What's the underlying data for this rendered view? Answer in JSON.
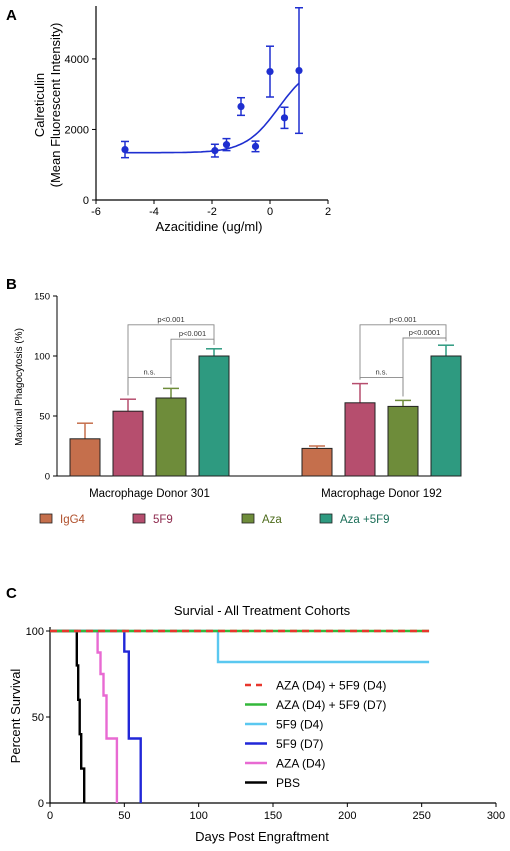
{
  "panels": {
    "a": "A",
    "b": "B",
    "c": "C"
  },
  "chart_data": [
    {
      "type": "scatter",
      "panel": "A",
      "xlabel": "Azacitidine (ug/ml)",
      "ylabel_line1": "Calreticulin",
      "ylabel_line2": "(Mean Fluorescent Intensity)",
      "xlim": [
        -6,
        2
      ],
      "ylim": [
        0,
        5500
      ],
      "xticks": [
        -6,
        -4,
        -2,
        0,
        2
      ],
      "yticks": [
        0,
        2000,
        4000
      ],
      "color": "#1f2fd0",
      "points": [
        {
          "x": -5.0,
          "y": 1430,
          "err": 230
        },
        {
          "x": -1.9,
          "y": 1400,
          "err": 180
        },
        {
          "x": -1.5,
          "y": 1570,
          "err": 170
        },
        {
          "x": -1.0,
          "y": 2650,
          "err": 250
        },
        {
          "x": -0.5,
          "y": 1520,
          "err": 150
        },
        {
          "x": 0.0,
          "y": 3640,
          "err": 720
        },
        {
          "x": 0.5,
          "y": 2330,
          "err": 300
        },
        {
          "x": 1.0,
          "y": 3670,
          "err": 1780
        }
      ],
      "fit_curve": {
        "bottom": 1340,
        "top": 3900,
        "logEC50": 0.3,
        "hill": 0.75,
        "x_range": [
          -5,
          1
        ]
      }
    },
    {
      "type": "bar",
      "panel": "B",
      "ylabel": "Maximal Phagocytosis (%)",
      "ylim": [
        0,
        150
      ],
      "yticks": [
        0,
        50,
        100,
        150
      ],
      "groups": [
        "Macrophage Donor 301",
        "Macrophage Donor 192"
      ],
      "series": [
        {
          "name": "IgG4",
          "color": "#c56f4c",
          "text_color": "#b0502c",
          "values": [
            31,
            23
          ],
          "errors": [
            13,
            2
          ]
        },
        {
          "name": "5F9",
          "color": "#b64e6e",
          "text_color": "#8e2a4e",
          "values": [
            54,
            61
          ],
          "errors": [
            10,
            16
          ]
        },
        {
          "name": "Aza",
          "color": "#6e8c3a",
          "text_color": "#4d6b1c",
          "values": [
            65,
            58
          ],
          "errors": [
            8,
            5
          ]
        },
        {
          "name": "Aza +5F9",
          "color": "#2e9a80",
          "text_color": "#1b6e58",
          "values": [
            100,
            100
          ],
          "errors": [
            6,
            9
          ]
        }
      ],
      "annotations": [
        {
          "group": 0,
          "from": 1,
          "to": 3,
          "label": "p<0.001",
          "y": 126
        },
        {
          "group": 0,
          "from": 2,
          "to": 3,
          "label": "p<0.001",
          "y": 114
        },
        {
          "group": 0,
          "from": 1,
          "to": 2,
          "label": "n.s.",
          "y": 82
        },
        {
          "group": 1,
          "from": 1,
          "to": 3,
          "label": "p<0.001",
          "y": 126
        },
        {
          "group": 1,
          "from": 2,
          "to": 3,
          "label": "p<0.0001",
          "y": 115
        },
        {
          "group": 1,
          "from": 1,
          "to": 2,
          "label": "n.s.",
          "y": 82
        }
      ]
    },
    {
      "type": "line",
      "panel": "C",
      "title": "Survial -  All Treatment Cohorts",
      "xlabel": "Days Post Engraftment",
      "ylabel": "Percent Survival",
      "xlim": [
        0,
        300
      ],
      "ylim": [
        0,
        100
      ],
      "xticks": [
        0,
        50,
        100,
        150,
        200,
        250,
        300
      ],
      "yticks": [
        0,
        50,
        100
      ],
      "legend_position": "bottom-right",
      "series": [
        {
          "name": "AZA (D4) + 5F9 (D4)",
          "color": "#e8362c",
          "dashed": true,
          "points": [
            [
              0,
              100
            ],
            [
              255,
              100
            ]
          ]
        },
        {
          "name": "AZA (D4) + 5F9 (D7)",
          "color": "#33b83a",
          "dashed": false,
          "points": [
            [
              0,
              100
            ],
            [
              255,
              100
            ]
          ]
        },
        {
          "name": "5F9 (D4)",
          "color": "#5ac8f0",
          "dashed": false,
          "points": [
            [
              0,
              100
            ],
            [
              113,
              100
            ],
            [
              113,
              82
            ],
            [
              255,
              82
            ]
          ]
        },
        {
          "name": "5F9 (D7)",
          "color": "#2127d8",
          "dashed": false,
          "points": [
            [
              0,
              100
            ],
            [
              50,
              100
            ],
            [
              50,
              88
            ],
            [
              53,
              88
            ],
            [
              53,
              37.5
            ],
            [
              61,
              37.5
            ],
            [
              61,
              0
            ]
          ]
        },
        {
          "name": "AZA (D4)",
          "color": "#e86ad2",
          "dashed": false,
          "points": [
            [
              0,
              100
            ],
            [
              32,
              100
            ],
            [
              32,
              87.5
            ],
            [
              34,
              87.5
            ],
            [
              34,
              75
            ],
            [
              36,
              75
            ],
            [
              36,
              62.5
            ],
            [
              38,
              62.5
            ],
            [
              38,
              37.5
            ],
            [
              45,
              37.5
            ],
            [
              45,
              0
            ]
          ]
        },
        {
          "name": "PBS",
          "color": "#000000",
          "dashed": false,
          "points": [
            [
              0,
              100
            ],
            [
              18,
              100
            ],
            [
              18,
              80
            ],
            [
              19,
              80
            ],
            [
              19,
              60
            ],
            [
              20,
              60
            ],
            [
              20,
              40
            ],
            [
              21,
              40
            ],
            [
              21,
              20
            ],
            [
              23,
              20
            ],
            [
              23,
              0
            ]
          ]
        }
      ]
    }
  ]
}
